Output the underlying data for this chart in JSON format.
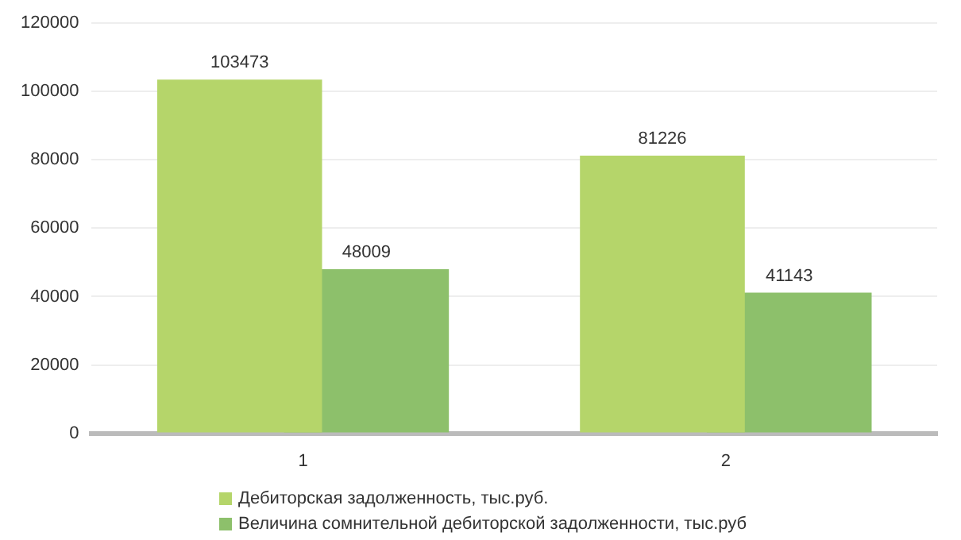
{
  "chart_data": {
    "type": "bar",
    "categories": [
      "1",
      "2"
    ],
    "series": [
      {
        "name": "Дебиторская задолженность, тыс.руб.",
        "color": "#b5d56a",
        "values": [
          103473,
          81226
        ]
      },
      {
        "name": "Величина сомнительной дебиторской задолженности, тыс.руб",
        "color": "#8dc06b",
        "values": [
          48009,
          41143
        ]
      }
    ],
    "ylim": [
      0,
      120000
    ],
    "yticks": [
      0,
      20000,
      40000,
      60000,
      80000,
      100000,
      120000
    ],
    "grid": "y",
    "legend": "bottom",
    "data_labels": true
  }
}
